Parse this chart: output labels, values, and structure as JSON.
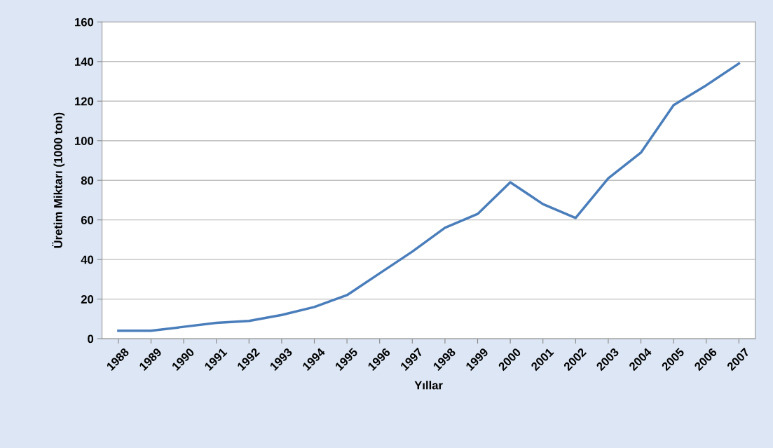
{
  "chart_data": {
    "type": "line",
    "xlabel": "Yıllar",
    "ylabel": "Üretim Miktarı (1000 ton)",
    "categories": [
      "1988",
      "1989",
      "1990",
      "1991",
      "1992",
      "1993",
      "1994",
      "1995",
      "1996",
      "1997",
      "1998",
      "1999",
      "2000",
      "2001",
      "2002",
      "2003",
      "2004",
      "2005",
      "2006",
      "2007"
    ],
    "series": [
      {
        "color": "#4a7ebb",
        "values": [
          4,
          4,
          6,
          8,
          9,
          12,
          16,
          22,
          33,
          44,
          56,
          63,
          79,
          68,
          61,
          81,
          94,
          118,
          128,
          139
        ]
      }
    ],
    "ylim": [
      0,
      160
    ],
    "yticks": [
      0,
      20,
      40,
      60,
      80,
      100,
      120,
      140,
      160
    ],
    "grid": "y",
    "legend": false,
    "marker": "none",
    "line_style": "solid"
  }
}
